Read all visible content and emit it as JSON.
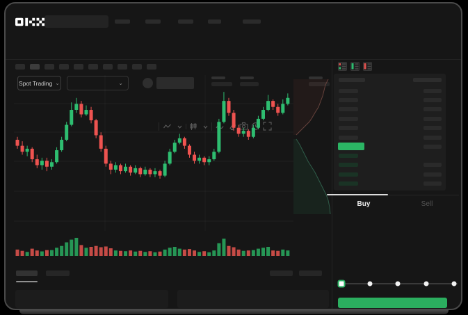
{
  "window": {
    "brand": "OKX"
  },
  "market_bar": {
    "pair_selector_label": "Spot Trading",
    "chevron": "⌄"
  },
  "chart_toolbar": {
    "timeframe_slots": 10,
    "icons": [
      "indicator-icon",
      "chevron-down-icon",
      "candle-style-icon",
      "chevron-down-icon",
      "line-tool-icon",
      "eraser-icon",
      "camera-icon",
      "undo-clock-icon",
      "fullscreen-icon"
    ]
  },
  "chart_data": {
    "type": "candlestick",
    "title": "",
    "x_unit": "bar-index",
    "price_scale_norm": [
      0,
      100
    ],
    "volume_scale_norm": [
      0,
      100
    ],
    "grid": true,
    "candle_format": [
      "open",
      "close",
      "high",
      "low",
      "volume"
    ],
    "candles": [
      [
        60,
        56,
        62,
        54,
        35
      ],
      [
        56,
        52,
        59,
        50,
        28
      ],
      [
        52,
        54,
        56,
        49,
        22
      ],
      [
        54,
        47,
        55,
        45,
        40
      ],
      [
        47,
        43,
        50,
        41,
        30
      ],
      [
        43,
        46,
        48,
        40,
        25
      ],
      [
        46,
        42,
        48,
        39,
        32
      ],
      [
        42,
        45,
        47,
        40,
        32
      ],
      [
        45,
        53,
        55,
        44,
        45
      ],
      [
        53,
        60,
        62,
        52,
        55
      ],
      [
        60,
        70,
        72,
        59,
        75
      ],
      [
        70,
        80,
        85,
        69,
        90
      ],
      [
        80,
        84,
        88,
        78,
        100
      ],
      [
        84,
        77,
        86,
        75,
        60
      ],
      [
        77,
        80,
        83,
        76,
        45
      ],
      [
        80,
        73,
        82,
        71,
        50
      ],
      [
        73,
        63,
        74,
        61,
        55
      ],
      [
        63,
        54,
        65,
        52,
        48
      ],
      [
        54,
        44,
        56,
        42,
        52
      ],
      [
        44,
        40,
        46,
        37,
        42
      ],
      [
        40,
        43,
        45,
        38,
        30
      ],
      [
        43,
        39,
        44,
        37,
        28
      ],
      [
        39,
        42,
        44,
        38,
        26
      ],
      [
        42,
        38,
        43,
        36,
        30
      ],
      [
        38,
        41,
        43,
        37,
        24
      ],
      [
        41,
        37,
        42,
        35,
        28
      ],
      [
        37,
        40,
        42,
        36,
        22
      ],
      [
        40,
        37,
        41,
        35,
        26
      ],
      [
        37,
        39,
        41,
        35,
        20
      ],
      [
        39,
        36,
        40,
        34,
        24
      ],
      [
        36,
        44,
        46,
        35,
        35
      ],
      [
        44,
        52,
        54,
        43,
        45
      ],
      [
        52,
        58,
        60,
        51,
        50
      ],
      [
        58,
        61,
        64,
        57,
        40
      ],
      [
        61,
        56,
        62,
        54,
        35
      ],
      [
        56,
        50,
        57,
        48,
        38
      ],
      [
        50,
        46,
        52,
        44,
        30
      ],
      [
        46,
        48,
        50,
        44,
        22
      ],
      [
        48,
        45,
        49,
        43,
        26
      ],
      [
        45,
        47,
        49,
        43,
        20
      ],
      [
        47,
        52,
        54,
        46,
        30
      ],
      [
        52,
        72,
        74,
        51,
        70
      ],
      [
        72,
        86,
        92,
        71,
        95
      ],
      [
        86,
        78,
        88,
        76,
        55
      ],
      [
        78,
        68,
        80,
        66,
        48
      ],
      [
        68,
        64,
        70,
        62,
        35
      ],
      [
        64,
        66,
        68,
        62,
        28
      ],
      [
        66,
        62,
        67,
        60,
        30
      ],
      [
        62,
        68,
        70,
        61,
        32
      ],
      [
        68,
        74,
        76,
        67,
        40
      ],
      [
        74,
        80,
        82,
        73,
        45
      ],
      [
        80,
        86,
        90,
        79,
        50
      ],
      [
        86,
        82,
        87,
        80,
        30
      ],
      [
        82,
        78,
        84,
        76,
        28
      ],
      [
        78,
        84,
        87,
        77,
        35
      ],
      [
        84,
        88,
        91,
        83,
        30
      ]
    ],
    "colors": {
      "up": "#2ebd70",
      "down": "#ee5350",
      "vol_up": "#269655",
      "vol_down": "#c64b46"
    },
    "depth": {
      "asks_steps": [
        [
          50,
          6
        ],
        [
          46,
          14
        ],
        [
          44,
          22
        ],
        [
          42,
          30
        ],
        [
          39,
          38
        ],
        [
          36,
          46
        ],
        [
          31,
          54
        ],
        [
          27,
          61
        ],
        [
          23,
          67
        ],
        [
          17,
          73
        ],
        [
          11,
          79
        ],
        [
          4,
          86
        ]
      ],
      "bids_steps": [
        [
          4,
          92
        ],
        [
          9,
          100
        ],
        [
          13,
          108
        ],
        [
          17,
          116
        ],
        [
          21,
          124
        ],
        [
          26,
          132
        ],
        [
          31,
          140
        ],
        [
          35,
          148
        ],
        [
          39,
          156
        ],
        [
          43,
          164
        ],
        [
          47,
          172
        ],
        [
          50,
          180
        ],
        [
          52,
          190
        ],
        [
          53,
          200
        ]
      ],
      "ask_stroke": "#66423c",
      "ask_fill": "rgba(150,70,60,0.10)",
      "bid_stroke": "#2f5c49",
      "bid_fill": "rgba(46,189,112,0.08)"
    }
  },
  "order_book": {
    "view_toggle_icons": [
      "book-combined-icon",
      "book-bids-icon",
      "book-asks-icon"
    ],
    "header_columns": 2,
    "rows": [
      {
        "side": "ask",
        "amount": true
      },
      {
        "side": "ask",
        "amount": true
      },
      {
        "side": "ask",
        "amount": true
      },
      {
        "side": "ask",
        "amount": true
      },
      {
        "side": "ask",
        "amount": true
      },
      {
        "side": "ask",
        "amount": true
      },
      {
        "side": "current",
        "amount": true
      },
      {
        "side": "bid",
        "amount": false
      },
      {
        "side": "bid",
        "amount": true
      },
      {
        "side": "bid",
        "amount": true
      },
      {
        "side": "bid",
        "amount": true
      }
    ],
    "ask_bar_color": "#2a2a2a",
    "bid_bar_color": "#1a3325",
    "current_price_bar_color": "#2bb564"
  },
  "trade_panel": {
    "tabs": [
      {
        "label": "Buy",
        "active": true
      },
      {
        "label": "Sell",
        "active": false
      }
    ],
    "input_placeholders": 3,
    "slider": {
      "stops_percent": [
        0,
        25,
        50,
        75,
        100
      ],
      "value_percent": 0
    },
    "submit_button_color": "#2bae5f"
  },
  "colors": {
    "background": "#161616",
    "orderbook_panel": "#1e1e1e",
    "accent_green": "#2bae5f",
    "candle_up": "#2ebd70",
    "candle_down": "#ee5350",
    "frame_border": "#4a4a4a"
  }
}
